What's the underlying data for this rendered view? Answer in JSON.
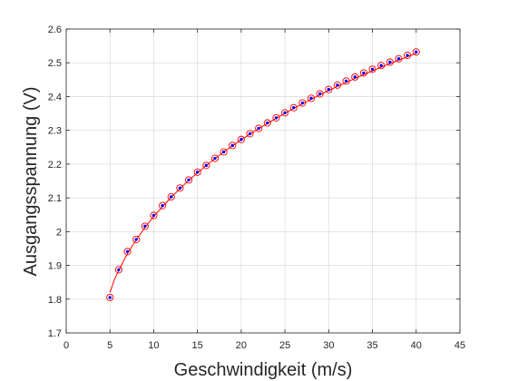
{
  "chart_data": {
    "type": "scatter",
    "xlabel": "Geschwindigkeit (m/s)",
    "ylabel": "Ausgangsspannung (V)",
    "xlim": [
      0,
      45
    ],
    "ylim": [
      1.7,
      2.6
    ],
    "xticks": [
      0,
      5,
      10,
      15,
      20,
      25,
      30,
      35,
      40,
      45
    ],
    "yticks": [
      1.7,
      1.8,
      1.9,
      2.0,
      2.1,
      2.2,
      2.3,
      2.4,
      2.5,
      2.6
    ],
    "xtick_labels": [
      "0",
      "5",
      "10",
      "15",
      "20",
      "25",
      "30",
      "35",
      "40",
      "45"
    ],
    "ytick_labels": [
      "1.7",
      "1.8",
      "1.9",
      "2",
      "2.1",
      "2.2",
      "2.3",
      "2.4",
      "2.5",
      "2.6"
    ],
    "grid": true,
    "series": [
      {
        "kind": "markers",
        "marker": "circle",
        "marker_color": "#0000ff",
        "ring_color": "#ff0000",
        "x": [
          5,
          6,
          7,
          8,
          9,
          10,
          11,
          12,
          13,
          14,
          15,
          16,
          17,
          18,
          19,
          20,
          21,
          22,
          23,
          24,
          25,
          26,
          27,
          28,
          29,
          30,
          31,
          32,
          33,
          34,
          35,
          36,
          37,
          38,
          39,
          40
        ],
        "y": [
          1.805,
          1.887,
          1.941,
          1.977,
          2.016,
          2.048,
          2.077,
          2.103,
          2.129,
          2.153,
          2.176,
          2.196,
          2.217,
          2.236,
          2.255,
          2.273,
          2.29,
          2.306,
          2.322,
          2.337,
          2.352,
          2.367,
          2.381,
          2.395,
          2.408,
          2.421,
          2.434,
          2.446,
          2.458,
          2.47,
          2.481,
          2.492,
          2.502,
          2.512,
          2.522,
          2.532
        ]
      },
      {
        "kind": "fit-line",
        "color": "#ff0000",
        "x": [
          5,
          5.5,
          6,
          7,
          8,
          9,
          10,
          12,
          14,
          16,
          18,
          20,
          22,
          24,
          26,
          28,
          30,
          32,
          34,
          36,
          38,
          40
        ],
        "y": [
          1.82,
          1.857,
          1.885,
          1.935,
          1.976,
          2.012,
          2.045,
          2.102,
          2.152,
          2.196,
          2.236,
          2.272,
          2.305,
          2.336,
          2.365,
          2.392,
          2.418,
          2.442,
          2.465,
          2.487,
          2.508,
          2.528
        ]
      }
    ]
  }
}
